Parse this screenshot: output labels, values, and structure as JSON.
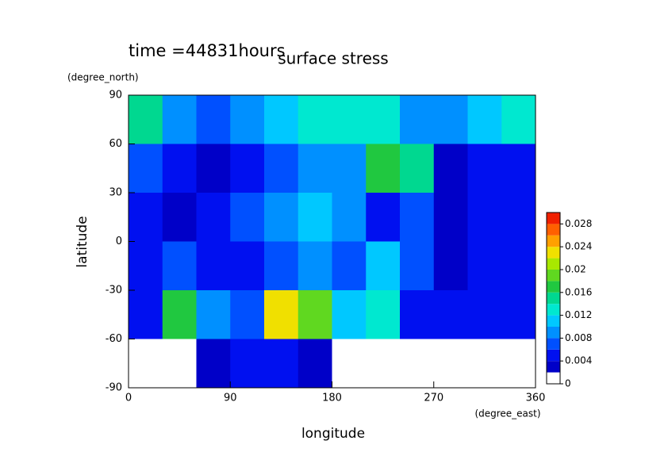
{
  "chart_data": {
    "type": "contour",
    "title": "surface stress",
    "subtitle": "time =44831hours",
    "x_label": "longitude",
    "x_unit": "(degree_east)",
    "y_label": "latitude",
    "y_unit": "(degree_north)",
    "xlim": [
      0,
      360
    ],
    "xticks": [
      0,
      90,
      180,
      270,
      360
    ],
    "ylim": [
      -90,
      90
    ],
    "yticks": [
      -90,
      -60,
      -30,
      0,
      30,
      60,
      90
    ],
    "x": [
      15,
      45,
      75,
      105,
      135,
      165,
      195,
      225,
      255,
      285,
      315,
      345
    ],
    "y": [
      75,
      45,
      15,
      -15,
      -45,
      -75
    ],
    "z": [
      [
        0.014,
        0.008,
        0.006,
        0.008,
        0.01,
        0.012,
        0.012,
        0.012,
        0.008,
        0.008,
        0.01,
        0.012
      ],
      [
        0.006,
        0.004,
        0.002,
        0.004,
        0.006,
        0.008,
        0.008,
        0.016,
        0.014,
        0.002,
        0.004,
        0.004
      ],
      [
        0.004,
        0.002,
        0.004,
        0.006,
        0.008,
        0.01,
        0.008,
        0.004,
        0.006,
        0.002,
        0.004,
        0.004
      ],
      [
        0.004,
        0.006,
        0.004,
        0.004,
        0.006,
        0.008,
        0.006,
        0.01,
        0.006,
        0.002,
        0.004,
        0.004
      ],
      [
        0.004,
        0.016,
        0.008,
        0.006,
        0.022,
        0.018,
        0.01,
        0.012,
        0.004,
        0.004,
        0.004,
        0.004
      ],
      [
        0,
        0,
        0.002,
        0.004,
        0.004,
        0.002,
        0,
        0,
        0,
        0,
        0,
        0
      ]
    ],
    "level_step": 0.002,
    "colors": [
      "#ffffff",
      "#0000c8",
      "#0010f0",
      "#0050ff",
      "#0090ff",
      "#00c8ff",
      "#00e8d0",
      "#00d890",
      "#20c840",
      "#60d820",
      "#a8e800",
      "#f0e000",
      "#ffa000",
      "#ff6000",
      "#f02000"
    ],
    "colorbar_lim": [
      0,
      0.03
    ],
    "colorbar_ticks": [
      0,
      0.004,
      0.008,
      0.012,
      0.016,
      0.02,
      0.024,
      0.028
    ]
  }
}
